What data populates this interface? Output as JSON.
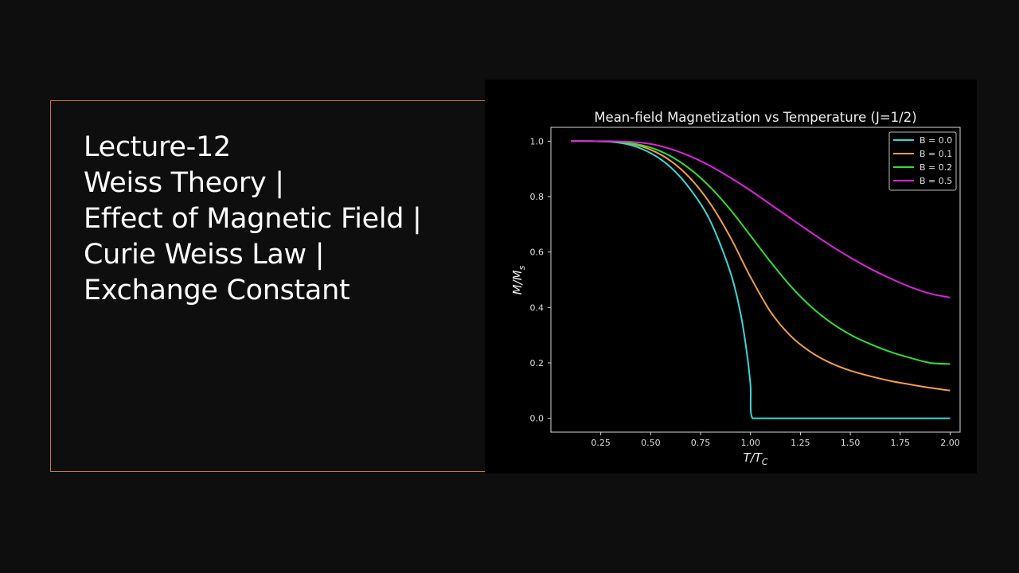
{
  "slide": {
    "lines": [
      "Lecture-12",
      "Weiss Theory |",
      "Effect of Magnetic Field |",
      "Curie Weiss Law |",
      "Exchange Constant"
    ]
  },
  "chart_data": {
    "type": "line",
    "title": "Mean-field Magnetization vs Temperature (J=1/2)",
    "xlabel": "T/T",
    "xlabel_sub": "C",
    "ylabel": "M/M",
    "ylabel_sub": "s",
    "xlim": [
      0.0,
      2.05
    ],
    "ylim": [
      -0.05,
      1.05
    ],
    "xticks": [
      0.25,
      0.5,
      0.75,
      1.0,
      1.25,
      1.5,
      1.75,
      2.0
    ],
    "xtick_labels": [
      "0.25",
      "0.50",
      "0.75",
      "1.00",
      "1.25",
      "1.50",
      "1.75",
      "2.00"
    ],
    "yticks": [
      0.0,
      0.2,
      0.4,
      0.6,
      0.8,
      1.0
    ],
    "ytick_labels": [
      "0.0",
      "0.2",
      "0.4",
      "0.6",
      "0.8",
      "1.0"
    ],
    "legend_position": "top-right",
    "grid": false,
    "series": [
      {
        "name": "B = 0.0",
        "color": "#3ad6d6",
        "x": [
          0.1,
          0.2,
          0.3,
          0.4,
          0.5,
          0.6,
          0.7,
          0.8,
          0.9,
          0.95,
          0.98,
          1.0,
          1.01,
          1.1,
          1.3,
          1.5,
          1.7,
          2.0
        ],
        "y": [
          1.0,
          1.0,
          0.998,
          0.986,
          0.957,
          0.906,
          0.825,
          0.71,
          0.525,
          0.379,
          0.245,
          0.12,
          0.0,
          0.0,
          0.0,
          0.0,
          0.0,
          0.0
        ]
      },
      {
        "name": "B = 0.1",
        "color": "#f0a040",
        "x": [
          0.1,
          0.2,
          0.3,
          0.4,
          0.5,
          0.6,
          0.7,
          0.8,
          0.9,
          1.0,
          1.1,
          1.2,
          1.3,
          1.4,
          1.5,
          1.6,
          1.7,
          1.8,
          1.9,
          2.0
        ],
        "y": [
          1.0,
          1.0,
          0.999,
          0.991,
          0.969,
          0.929,
          0.865,
          0.773,
          0.652,
          0.51,
          0.385,
          0.298,
          0.24,
          0.2,
          0.172,
          0.152,
          0.135,
          0.122,
          0.11,
          0.1
        ]
      },
      {
        "name": "B = 0.2",
        "color": "#33dd33",
        "x": [
          0.1,
          0.2,
          0.3,
          0.4,
          0.5,
          0.6,
          0.7,
          0.8,
          0.9,
          1.0,
          1.1,
          1.2,
          1.3,
          1.4,
          1.5,
          1.6,
          1.7,
          1.8,
          1.9,
          2.0
        ],
        "y": [
          1.0,
          1.0,
          0.999,
          0.993,
          0.977,
          0.946,
          0.898,
          0.833,
          0.752,
          0.659,
          0.565,
          0.478,
          0.405,
          0.347,
          0.302,
          0.268,
          0.24,
          0.218,
          0.2,
          0.196
        ]
      },
      {
        "name": "B = 0.5",
        "color": "#dd22dd",
        "x": [
          0.1,
          0.2,
          0.3,
          0.4,
          0.5,
          0.6,
          0.7,
          0.8,
          0.9,
          1.0,
          1.1,
          1.2,
          1.3,
          1.4,
          1.5,
          1.6,
          1.7,
          1.8,
          1.9,
          2.0
        ],
        "y": [
          1.0,
          1.0,
          1.0,
          0.998,
          0.99,
          0.972,
          0.945,
          0.91,
          0.868,
          0.822,
          0.772,
          0.722,
          0.672,
          0.624,
          0.58,
          0.54,
          0.505,
          0.474,
          0.45,
          0.436
        ]
      }
    ]
  }
}
